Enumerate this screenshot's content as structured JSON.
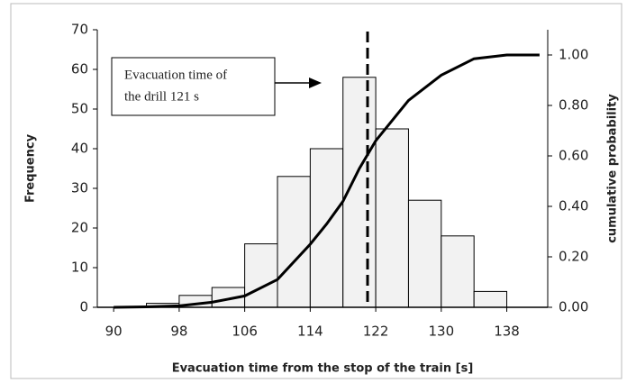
{
  "chart_data": {
    "type": "histogram",
    "x_label": "Evacuation time from the stop of the train [s]",
    "y_label": "Frequency",
    "y2_label": "cumulative probability",
    "bins": [
      94,
      98,
      102,
      106,
      110,
      114,
      118,
      122,
      126,
      130,
      134,
      138
    ],
    "counts": [
      1,
      3,
      5,
      16,
      33,
      40,
      58,
      45,
      27,
      18,
      4
    ],
    "bar_color": "#f2f2f2",
    "xlim": [
      88,
      143
    ],
    "xticks": [
      90,
      98,
      106,
      114,
      122,
      130,
      138
    ],
    "ylim": [
      0,
      70
    ],
    "yticks": [
      0,
      10,
      20,
      30,
      40,
      50,
      60,
      70
    ],
    "y2lim": [
      0,
      1.1
    ],
    "y2ticks": [
      {
        "value": 0,
        "label": "0.00"
      },
      {
        "value": 0.2,
        "label": "0.20"
      },
      {
        "value": 0.4,
        "label": "0.40"
      },
      {
        "value": 0.6,
        "label": "0.60"
      },
      {
        "value": 0.8,
        "label": "0.80"
      },
      {
        "value": 1,
        "label": "1.00"
      }
    ],
    "series": [
      {
        "name": "cumulative probability",
        "axis": "y2",
        "color": "#000000",
        "x": [
          90,
          94,
          98,
          102,
          106,
          110,
          114,
          116,
          118,
          120,
          122,
          126,
          130,
          134,
          138,
          142
        ],
        "values": [
          0,
          0.002,
          0.006,
          0.02,
          0.045,
          0.11,
          0.25,
          0.33,
          0.42,
          0.55,
          0.66,
          0.82,
          0.92,
          0.985,
          1.0,
          1.0
        ]
      }
    ],
    "reference_line": 121,
    "annotation": "Evacuation time of the drill 121 s",
    "annotation_lines": [
      "Evacuation time of",
      "the drill 121 s"
    ]
  }
}
